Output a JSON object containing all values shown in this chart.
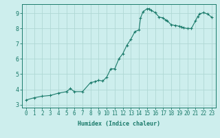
{
  "x_vals": [
    0,
    1,
    2,
    3,
    4,
    5,
    5.5,
    6,
    7,
    8,
    8.5,
    9,
    9.5,
    10,
    10.5,
    11,
    11.5,
    12,
    12.5,
    13,
    13.5,
    14,
    14.2,
    14.5,
    15,
    15.3,
    15.5,
    16,
    16.5,
    17,
    17.3,
    17.5,
    18,
    18.5,
    19,
    19.3,
    19.5,
    20,
    20.5,
    21,
    21.3,
    21.5,
    22,
    22.5,
    23
  ],
  "y_vals": [
    3.3,
    3.45,
    3.55,
    3.6,
    3.75,
    3.85,
    4.05,
    3.85,
    3.85,
    4.45,
    4.5,
    4.6,
    4.55,
    4.8,
    5.35,
    5.35,
    6.0,
    6.35,
    6.9,
    7.3,
    7.8,
    7.9,
    8.7,
    9.1,
    9.3,
    9.3,
    9.2,
    9.05,
    8.75,
    8.7,
    8.55,
    8.5,
    8.25,
    8.2,
    8.15,
    8.1,
    8.05,
    8.0,
    8.0,
    8.5,
    8.8,
    8.95,
    9.05,
    8.95,
    8.75
  ],
  "line_color": "#1a7a6a",
  "bg_color": "#cdeeed",
  "grid_color": "#b0d8d4",
  "xlabel": "Humidex (Indice chaleur)",
  "xlim": [
    -0.5,
    23.5
  ],
  "ylim": [
    2.8,
    9.6
  ],
  "yticks": [
    3,
    4,
    5,
    6,
    7,
    8,
    9
  ],
  "xticks": [
    0,
    1,
    2,
    3,
    4,
    5,
    6,
    7,
    8,
    9,
    10,
    11,
    12,
    13,
    14,
    15,
    16,
    17,
    18,
    19,
    20,
    21,
    22,
    23
  ],
  "xlabel_fontsize": 6.0,
  "tick_fontsize": 5.5
}
